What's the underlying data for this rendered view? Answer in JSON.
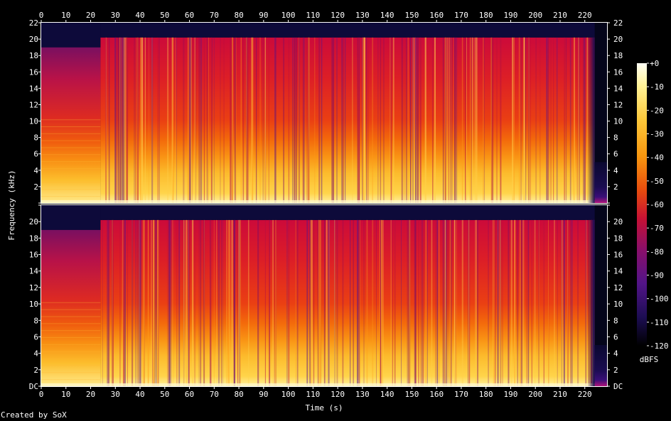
{
  "chart_data": {
    "type": "heatmap",
    "subtype": "spectrogram",
    "channels": 2,
    "xlabel": "Time (s)",
    "ylabel": "Frequency (kHz)",
    "xlim": [
      0,
      229
    ],
    "ylim": [
      0,
      22
    ],
    "x_ticks": [
      0,
      10,
      20,
      30,
      40,
      50,
      60,
      70,
      80,
      90,
      100,
      110,
      120,
      130,
      140,
      150,
      160,
      170,
      180,
      190,
      200,
      210,
      220
    ],
    "y_ticks": [
      {
        "value": 0,
        "label": "DC"
      },
      {
        "value": 2,
        "label": "2"
      },
      {
        "value": 4,
        "label": "4"
      },
      {
        "value": 6,
        "label": "6"
      },
      {
        "value": 8,
        "label": "8"
      },
      {
        "value": 10,
        "label": "10"
      },
      {
        "value": 12,
        "label": "12"
      },
      {
        "value": 14,
        "label": "14"
      },
      {
        "value": 16,
        "label": "16"
      },
      {
        "value": 18,
        "label": "18"
      },
      {
        "value": 20,
        "label": "20"
      },
      {
        "value": 22,
        "label": "22"
      }
    ],
    "colorbar": {
      "label": "dBFS",
      "range": [
        -120,
        0
      ],
      "ticks": [
        {
          "value": 0,
          "label": "+0"
        },
        {
          "value": -10,
          "label": "-10"
        },
        {
          "value": -20,
          "label": "-20"
        },
        {
          "value": -30,
          "label": "-30"
        },
        {
          "value": -40,
          "label": "-40"
        },
        {
          "value": -50,
          "label": "-50"
        },
        {
          "value": -60,
          "label": "-60"
        },
        {
          "value": -70,
          "label": "-70"
        },
        {
          "value": -80,
          "label": "-80"
        },
        {
          "value": -90,
          "label": "-90"
        },
        {
          "value": -100,
          "label": "-100"
        },
        {
          "value": -110,
          "label": "-110"
        },
        {
          "value": -120,
          "label": "-120"
        }
      ]
    },
    "segments": [
      {
        "start": 0,
        "end": 24,
        "cutoff_khz": 19,
        "level_db": -72
      },
      {
        "start": 24,
        "end": 224,
        "cutoff_khz": 20.2,
        "level_db": -58
      },
      {
        "start": 224,
        "end": 229,
        "cutoff_khz": 5,
        "level_db": -100
      }
    ]
  },
  "credit": "Created by SoX"
}
